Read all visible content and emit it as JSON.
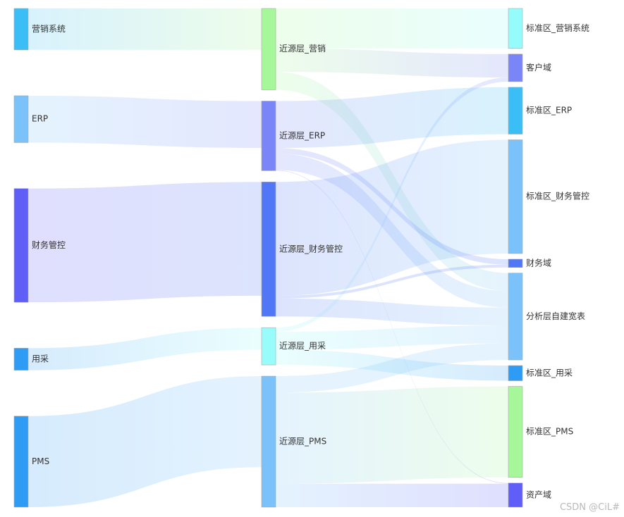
{
  "chart_data": {
    "type": "sankey",
    "title": "",
    "colors": {
      "营销系统": "#3bbdf6",
      "ERP": "#7ac2f9",
      "财务管控": "#5f5ef7",
      "用采": "#2e9bf4",
      "PMS": "#2e9bf4",
      "近源层_营销": "#a6f79a",
      "近源层_ERP": "#7a86f7",
      "近源层_财务管控": "#5277f6",
      "近源层_用采": "#98fcfb",
      "近源层_PMS": "#7ac2f9",
      "标准区_营销系统": "#96fcfb",
      "客户域": "#7a86f7",
      "标准区_ERP": "#3bbdf6",
      "标准区_财务管控": "#7ac2f9",
      "财务域": "#5277f6",
      "分析层自建宽表": "#7ac2f9",
      "标准区_用采": "#2e9bf4",
      "标准区_PMS": "#a6f79a",
      "资产域": "#5f5ef7"
    },
    "columns": [
      [
        "营销系统",
        "ERP",
        "财务管控",
        "用采",
        "PMS"
      ],
      [
        "近源层_营销",
        "近源层_ERP",
        "近源层_财务管控",
        "近源层_用采",
        "近源层_PMS"
      ],
      [
        "标准区_营销系统",
        "客户域",
        "标准区_ERP",
        "标准区_财务管控",
        "财务域",
        "分析层自建宽表",
        "标准区_用采",
        "标准区_PMS",
        "资产域"
      ]
    ],
    "links": [
      {
        "source": "营销系统",
        "target": "近源层_营销",
        "value": 60
      },
      {
        "source": "ERP",
        "target": "近源层_ERP",
        "value": 68
      },
      {
        "source": "财务管控",
        "target": "近源层_财务管控",
        "value": 165
      },
      {
        "source": "用采",
        "target": "近源层_用采",
        "value": 32
      },
      {
        "source": "PMS",
        "target": "近源层_PMS",
        "value": 132
      },
      {
        "source": "近源层_营销",
        "target": "标准区_营销系统",
        "value": 58
      },
      {
        "source": "近源层_营销",
        "target": "客户域",
        "value": 34
      },
      {
        "source": "近源层_营销",
        "target": "分析层自建宽表",
        "value": 26
      },
      {
        "source": "近源层_ERP",
        "target": "标准区_ERP",
        "value": 68
      },
      {
        "source": "近源层_ERP",
        "target": "财务域",
        "value": 8
      },
      {
        "source": "近源层_ERP",
        "target": "分析层自建宽表",
        "value": 24
      },
      {
        "source": "近源层_ERP",
        "target": "资产域",
        "value": 1
      },
      {
        "source": "近源层_财务管控",
        "target": "标准区_财务管控",
        "value": 165
      },
      {
        "source": "近源层_财务管控",
        "target": "财务域",
        "value": 4
      },
      {
        "source": "近源层_财务管控",
        "target": "分析层自建宽表",
        "value": 26
      },
      {
        "source": "近源层_用采",
        "target": "标准区_用采",
        "value": 22
      },
      {
        "source": "近源层_用采",
        "target": "客户域",
        "value": 6
      },
      {
        "source": "近源层_用采",
        "target": "分析层自建宽表",
        "value": 26
      },
      {
        "source": "近源层_PMS",
        "target": "标准区_PMS",
        "value": 132
      },
      {
        "source": "近源层_PMS",
        "target": "资产域",
        "value": 34
      },
      {
        "source": "近源层_PMS",
        "target": "分析层自建宽表",
        "value": 24
      }
    ]
  },
  "watermark": "CSDN @CiL#"
}
